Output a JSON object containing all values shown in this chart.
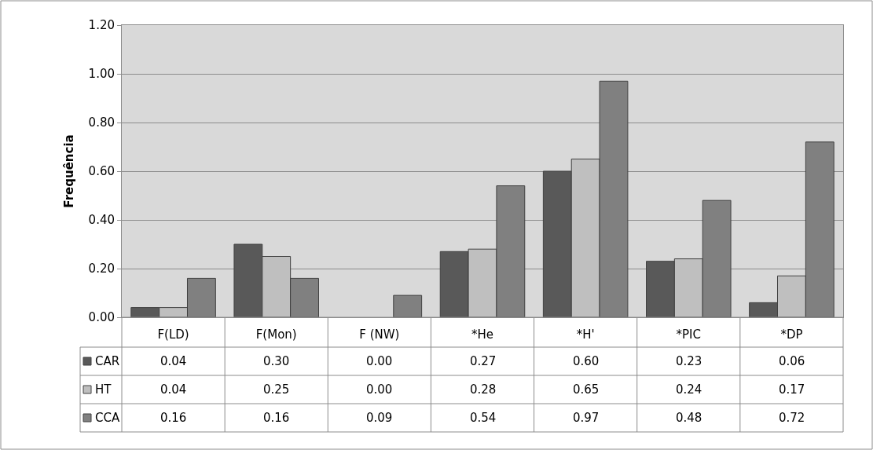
{
  "chart_data": {
    "type": "bar",
    "ylabel": "Frequência",
    "categories": [
      "F(LD)",
      "F(Mon)",
      "F (NW)",
      "*He",
      "*H'",
      "*PIC",
      "*DP"
    ],
    "series": [
      {
        "name": "CAR",
        "color": "#595959",
        "values": [
          0.04,
          0.3,
          0.0,
          0.27,
          0.6,
          0.23,
          0.06
        ],
        "value_labels": [
          "0.04",
          "0.30",
          "0.00",
          "0.27",
          "0.60",
          "0.23",
          "0.06"
        ]
      },
      {
        "name": "HT",
        "color": "#bfbfbf",
        "values": [
          0.04,
          0.25,
          0.0,
          0.28,
          0.65,
          0.24,
          0.17
        ],
        "value_labels": [
          "0.04",
          "0.25",
          "0.00",
          "0.28",
          "0.65",
          "0.24",
          "0.17"
        ]
      },
      {
        "name": "CCA",
        "color": "#808080",
        "values": [
          0.16,
          0.16,
          0.09,
          0.54,
          0.97,
          0.48,
          0.72
        ],
        "value_labels": [
          "0.16",
          "0.16",
          "0.09",
          "0.54",
          "0.97",
          "0.48",
          "0.72"
        ]
      }
    ],
    "ylim": [
      0,
      1.2
    ],
    "yticks": [
      {
        "value": 0,
        "label": "0.00"
      },
      {
        "value": 0.2,
        "label": "0.20"
      },
      {
        "value": 0.4,
        "label": "0.40"
      },
      {
        "value": 0.6,
        "label": "0.60"
      },
      {
        "value": 0.8,
        "label": "0.80"
      },
      {
        "value": 1.0,
        "label": "1.00"
      },
      {
        "value": 1.2,
        "label": "1.20"
      }
    ],
    "grid": "y",
    "legend": "bottom left"
  }
}
